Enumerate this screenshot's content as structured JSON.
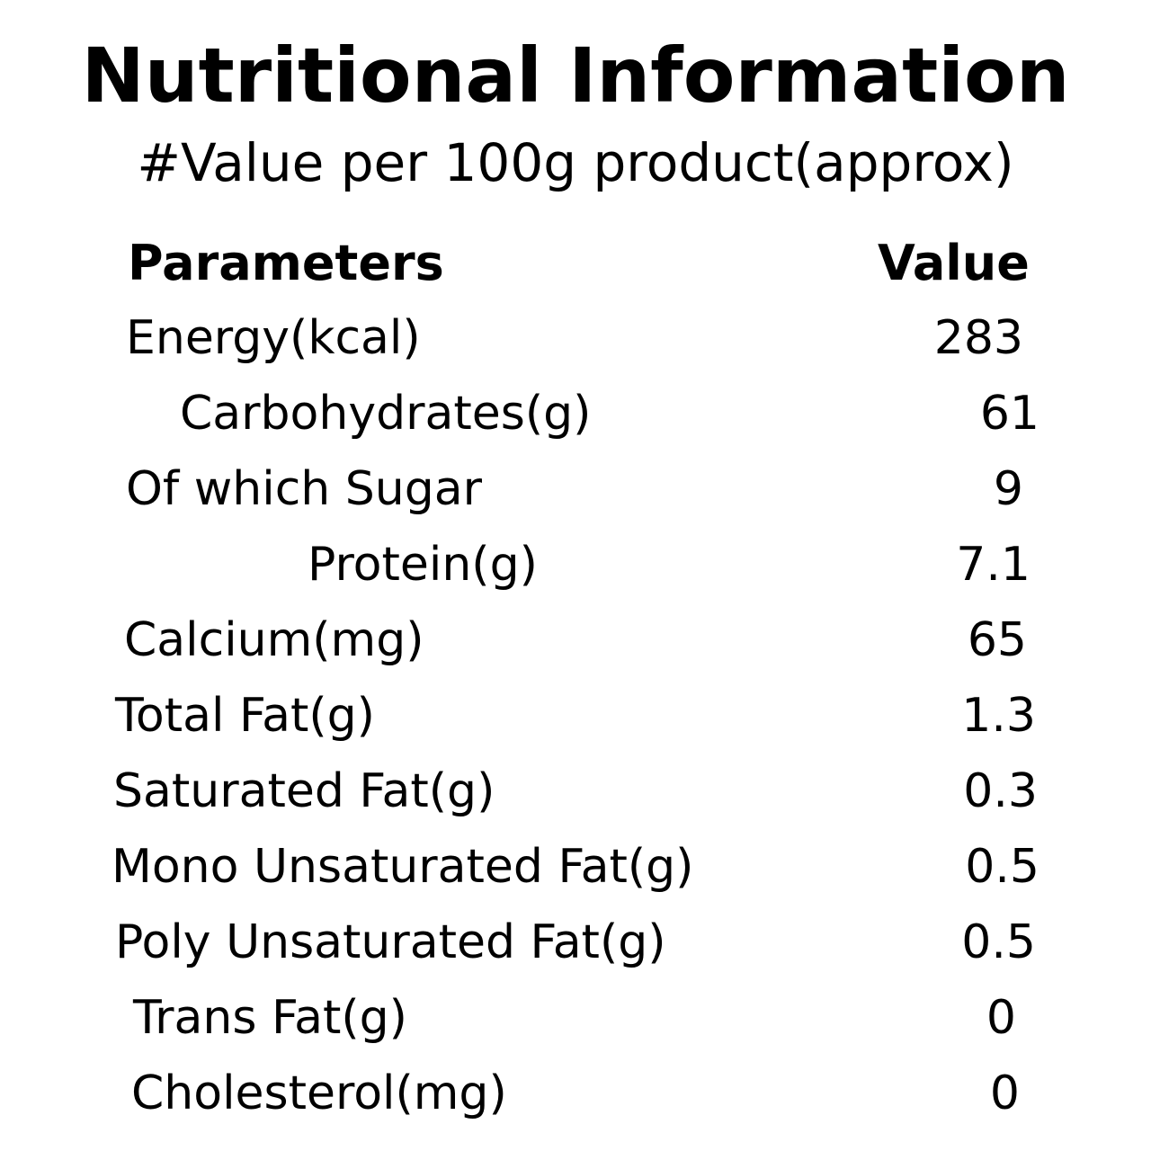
{
  "title": "Nutritional Information",
  "subtitle": "#Value per 100g product(approx)",
  "table": {
    "headers": {
      "parameter": "Parameters",
      "value": "Value"
    },
    "rows": [
      {
        "parameter": "Energy(kcal)",
        "value": "283"
      },
      {
        "parameter": "Carbohydrates(g)",
        "value": "61"
      },
      {
        "parameter": "Of which Sugar",
        "value": "9"
      },
      {
        "parameter": "Protein(g)",
        "value": "7.1"
      },
      {
        "parameter": "Calcium(mg)",
        "value": "65"
      },
      {
        "parameter": "Total Fat(g)",
        "value": "1.3"
      },
      {
        "parameter": "Saturated Fat(g)",
        "value": "0.3"
      },
      {
        "parameter": "Mono Unsaturated Fat(g)",
        "value": "0.5"
      },
      {
        "parameter": "Poly Unsaturated Fat(g)",
        "value": "0.5"
      },
      {
        "parameter": "Trans Fat(g)",
        "value": "0"
      },
      {
        "parameter": "Cholesterol(mg)",
        "value": "0"
      }
    ]
  }
}
